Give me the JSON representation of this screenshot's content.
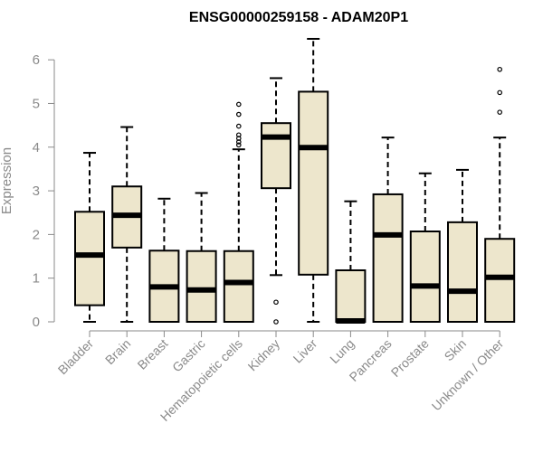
{
  "chart_data": {
    "type": "boxplot",
    "title": "ENSG00000259158 - ADAM20P1",
    "ylabel": "Expression",
    "ylim": [
      0,
      6.5
    ],
    "yticks": [
      0,
      1,
      2,
      3,
      4,
      5,
      6
    ],
    "box_color": "#ede6cc",
    "categories": [
      "Bladder",
      "Brain",
      "Breast",
      "Gastric",
      "Hematopoietic cells",
      "Kidney",
      "Liver",
      "Lung",
      "Pancreas",
      "Prostate",
      "Skin",
      "Unknown / Other"
    ],
    "boxes": [
      {
        "min": 0.0,
        "q1": 0.38,
        "median": 1.53,
        "q3": 2.52,
        "max": 3.87,
        "outliers": []
      },
      {
        "min": 0.0,
        "q1": 1.7,
        "median": 2.44,
        "q3": 3.1,
        "max": 4.46,
        "outliers": []
      },
      {
        "min": 0.0,
        "q1": 0.0,
        "median": 0.8,
        "q3": 1.63,
        "max": 2.82,
        "outliers": []
      },
      {
        "min": 0.0,
        "q1": 0.0,
        "median": 0.73,
        "q3": 1.62,
        "max": 2.95,
        "outliers": []
      },
      {
        "min": 0.0,
        "q1": 0.0,
        "median": 0.9,
        "q3": 1.62,
        "max": 3.95,
        "outliers": [
          4.05,
          4.12,
          4.2,
          4.28,
          4.48,
          4.75,
          4.98
        ]
      },
      {
        "min": 1.07,
        "q1": 3.06,
        "median": 4.23,
        "q3": 4.55,
        "max": 5.58,
        "outliers": [
          0.45,
          0.0
        ]
      },
      {
        "min": 0.0,
        "q1": 1.08,
        "median": 3.99,
        "q3": 5.27,
        "max": 6.48,
        "outliers": []
      },
      {
        "min": 0.0,
        "q1": 0.0,
        "median": 0.02,
        "q3": 1.18,
        "max": 2.76,
        "outliers": []
      },
      {
        "min": 0.0,
        "q1": 0.0,
        "median": 1.99,
        "q3": 2.92,
        "max": 4.22,
        "outliers": []
      },
      {
        "min": 0.0,
        "q1": 0.0,
        "median": 0.82,
        "q3": 2.07,
        "max": 3.4,
        "outliers": []
      },
      {
        "min": 0.0,
        "q1": 0.0,
        "median": 0.7,
        "q3": 2.28,
        "max": 3.48,
        "outliers": []
      },
      {
        "min": 0.0,
        "q1": 0.0,
        "median": 1.02,
        "q3": 1.9,
        "max": 4.22,
        "outliers": [
          4.8,
          5.25,
          5.78
        ]
      }
    ]
  }
}
